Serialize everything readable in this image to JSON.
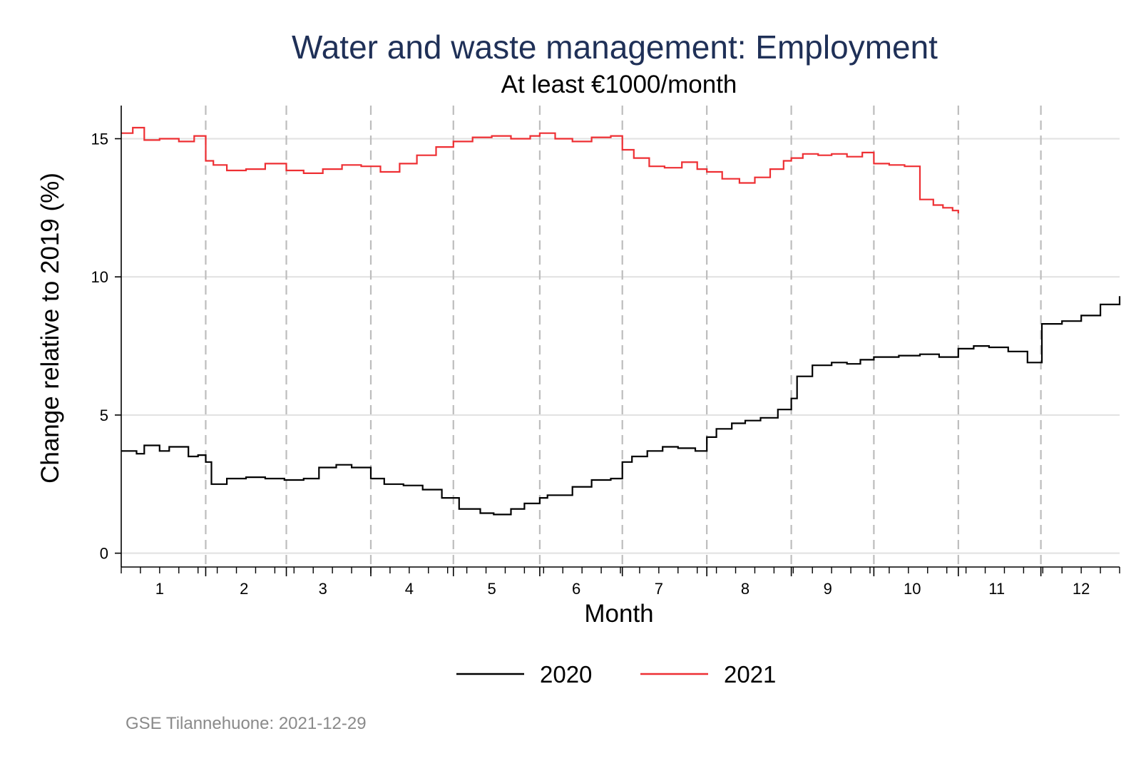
{
  "chart_data": {
    "type": "line",
    "title": "Water and waste management: Employment",
    "subtitle": "At least €1000/month",
    "xlabel": "Month",
    "ylabel": "Change relative to 2019 (%)",
    "xlim": [
      1,
      53
    ],
    "ylim": [
      -0.5,
      16.2
    ],
    "yticks": [
      0,
      5,
      10,
      15
    ],
    "ytick_labels": [
      "0",
      "5",
      "10",
      "15"
    ],
    "month_labels": [
      "1",
      "2",
      "3",
      "4",
      "5",
      "6",
      "7",
      "8",
      "9",
      "10",
      "11",
      "12"
    ],
    "month_label_x": [
      3,
      7.4,
      11.5,
      16,
      20.3,
      24.7,
      29,
      33.5,
      37.8,
      42.2,
      46.6,
      51
    ],
    "month_boundaries": [
      5.4,
      9.6,
      14,
      18.3,
      22.8,
      27.1,
      31.5,
      35.9,
      40.2,
      44.6,
      48.9
    ],
    "series": [
      {
        "name": "2020",
        "color": "#000000",
        "x": [
          1,
          1.8,
          2.2,
          3,
          3.5,
          4.5,
          5,
          5.4,
          5.7,
          6.5,
          7.5,
          8.5,
          9.5,
          10.5,
          11.3,
          12.2,
          13,
          14,
          14.7,
          15.7,
          16.7,
          17.7,
          18.6,
          19.7,
          20.4,
          21.3,
          22,
          22.8,
          23.2,
          24.5,
          25.5,
          26.5,
          27.1,
          27.6,
          28.4,
          29.2,
          30,
          30.9,
          31.5,
          32,
          32.8,
          33.5,
          34.3,
          35.2,
          35.9,
          36.2,
          37,
          38,
          38.8,
          39.5,
          40.2,
          41.5,
          42.6,
          43.6,
          44.6,
          45.4,
          46.2,
          47.2,
          48.2,
          48.9,
          48.95,
          50,
          51,
          52,
          53
        ],
        "y": [
          3.7,
          3.6,
          3.9,
          3.7,
          3.85,
          3.5,
          3.55,
          3.3,
          2.5,
          2.7,
          2.75,
          2.7,
          2.65,
          2.7,
          3.1,
          3.2,
          3.1,
          2.7,
          2.5,
          2.45,
          2.3,
          2.0,
          1.6,
          1.45,
          1.4,
          1.6,
          1.8,
          2.0,
          2.1,
          2.4,
          2.65,
          2.7,
          3.3,
          3.5,
          3.7,
          3.85,
          3.8,
          3.7,
          4.2,
          4.5,
          4.7,
          4.8,
          4.9,
          5.2,
          5.6,
          6.4,
          6.8,
          6.9,
          6.85,
          7.0,
          7.1,
          7.15,
          7.2,
          7.1,
          7.4,
          7.5,
          7.45,
          7.3,
          6.9,
          6.9,
          8.3,
          8.4,
          8.6,
          9.0,
          9.3
        ]
      },
      {
        "name": "2021",
        "color": "#ee2f33",
        "x": [
          1,
          1.6,
          2.2,
          3,
          4,
          4.8,
          5.4,
          5.8,
          6.5,
          7.5,
          8.5,
          9.6,
          10.5,
          11.5,
          12.5,
          13.5,
          14.5,
          15.5,
          16.4,
          17.4,
          18.3,
          19.3,
          20.3,
          21.3,
          22.3,
          22.8,
          23.6,
          24.5,
          25.5,
          26.5,
          27.1,
          27.7,
          28.5,
          29.3,
          30.2,
          31,
          31.5,
          32.3,
          33.2,
          34,
          34.8,
          35.5,
          35.9,
          36.5,
          37.3,
          38,
          38.8,
          39.6,
          40.2,
          41,
          41.8,
          42.6,
          43.3,
          43.8,
          44.3,
          44.6
        ],
        "y": [
          15.2,
          15.4,
          14.95,
          15.0,
          14.9,
          15.1,
          14.2,
          14.05,
          13.85,
          13.9,
          14.1,
          13.85,
          13.75,
          13.9,
          14.05,
          14.0,
          13.8,
          14.1,
          14.4,
          14.7,
          14.9,
          15.05,
          15.1,
          15.0,
          15.1,
          15.2,
          15.0,
          14.9,
          15.05,
          15.1,
          14.6,
          14.3,
          14.0,
          13.95,
          14.15,
          13.9,
          13.8,
          13.55,
          13.4,
          13.6,
          13.9,
          14.2,
          14.3,
          14.45,
          14.4,
          14.45,
          14.35,
          14.5,
          14.1,
          14.05,
          14.0,
          12.8,
          12.6,
          12.5,
          12.4,
          12.3
        ]
      }
    ],
    "legend": [
      "2020",
      "2021"
    ],
    "legend_position": "bottom"
  },
  "footnote": "GSE Tilannehuone: 2021-12-29"
}
